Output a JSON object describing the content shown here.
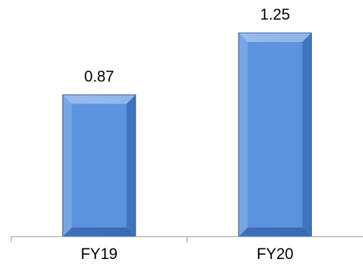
{
  "chart_data": {
    "type": "bar",
    "categories": [
      "FY19",
      "FY20"
    ],
    "values": [
      0.87,
      1.25
    ],
    "data_labels": [
      "0.87",
      "1.25"
    ],
    "ylim": [
      0,
      1.25
    ],
    "grid": false,
    "legend": "none",
    "bar_style": "beveled",
    "colors": {
      "bar_fill": "#5b93dc",
      "bar_light": "#9cc0ef",
      "bar_dark": "#3f72bd",
      "bar_edge": "#2f5e9f",
      "axis": "#8c8c8c",
      "text": "#000000"
    }
  }
}
